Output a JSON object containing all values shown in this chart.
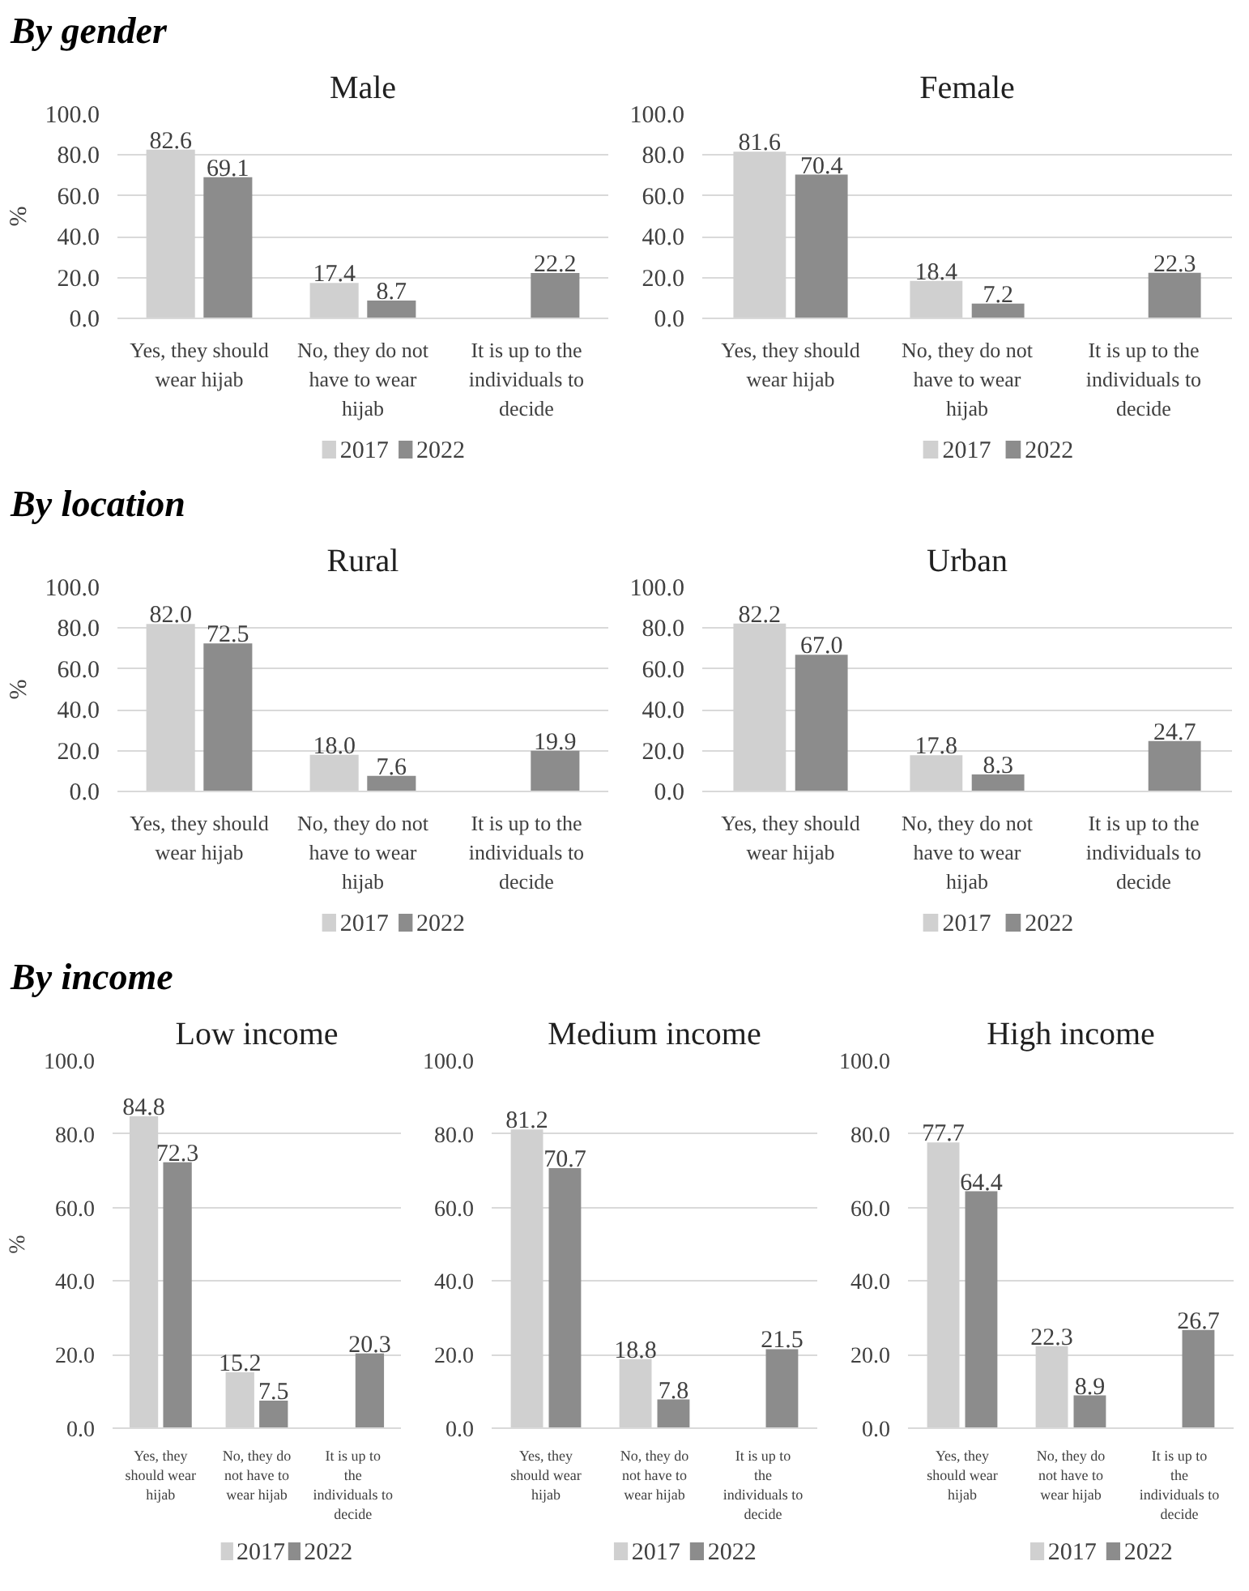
{
  "chart_data": [
    {
      "type": "other",
      "title": "By gender"
    },
    {
      "type": "bar",
      "title": "Male",
      "ylabel": "%",
      "categories": [
        "Yes, they should wear hijab",
        "No, they do not have to wear hijab",
        "It is up to the individuals to decide"
      ],
      "series": [
        {
          "name": "2017",
          "color": "#d0d0d0",
          "values": [
            82.6,
            17.4,
            null
          ],
          "value_labels": [
            "82.6",
            "17.4",
            null
          ]
        },
        {
          "name": "2022",
          "color": "#8c8c8c",
          "values": [
            69.1,
            8.7,
            22.2
          ],
          "value_labels": [
            "69.1",
            "8.7",
            "22.2"
          ]
        }
      ],
      "ylim": [
        0,
        100
      ],
      "yticks": [
        {
          "value": 0,
          "label": "0.0"
        },
        {
          "value": 20,
          "label": "20.0"
        },
        {
          "value": 40,
          "label": "40.0"
        },
        {
          "value": 60,
          "label": "60.0"
        },
        {
          "value": 80,
          "label": "80.0"
        },
        {
          "value": 100,
          "label": "100.0"
        }
      ],
      "grid": "y",
      "legend": "bottom"
    },
    {
      "type": "bar",
      "title": "Female",
      "categories": [
        "Yes, they should wear hijab",
        "No, they do not have to wear hijab",
        "It is up to the individuals to decide"
      ],
      "series": [
        {
          "name": "2017",
          "color": "#d0d0d0",
          "values": [
            81.6,
            18.4,
            null
          ],
          "value_labels": [
            "81.6",
            "18.4",
            null
          ]
        },
        {
          "name": "2022",
          "color": "#8c8c8c",
          "values": [
            70.4,
            7.2,
            22.3
          ],
          "value_labels": [
            "70.4",
            "7.2",
            "22.3"
          ]
        }
      ],
      "ylim": [
        0,
        100
      ],
      "yticks": [
        {
          "value": 0,
          "label": "0.0"
        },
        {
          "value": 20,
          "label": "20.0"
        },
        {
          "value": 40,
          "label": "40.0"
        },
        {
          "value": 60,
          "label": "60.0"
        },
        {
          "value": 80,
          "label": "80.0"
        },
        {
          "value": 100,
          "label": "100.0"
        }
      ],
      "grid": "y",
      "legend": "bottom"
    },
    {
      "type": "other",
      "title": "By location"
    },
    {
      "type": "bar",
      "title": "Rural",
      "ylabel": "%",
      "categories": [
        "Yes, they should wear hijab",
        "No, they do not have to wear hijab",
        "It is up to the individuals to decide"
      ],
      "series": [
        {
          "name": "2017",
          "color": "#d0d0d0",
          "values": [
            82.0,
            18.0,
            null
          ],
          "value_labels": [
            "82.0",
            "18.0",
            null
          ]
        },
        {
          "name": "2022",
          "color": "#8c8c8c",
          "values": [
            72.5,
            7.6,
            19.9
          ],
          "value_labels": [
            "72.5",
            "7.6",
            "19.9"
          ]
        }
      ],
      "ylim": [
        0,
        100
      ],
      "yticks": [
        {
          "value": 0,
          "label": "0.0"
        },
        {
          "value": 20,
          "label": "20.0"
        },
        {
          "value": 40,
          "label": "40.0"
        },
        {
          "value": 60,
          "label": "60.0"
        },
        {
          "value": 80,
          "label": "80.0"
        },
        {
          "value": 100,
          "label": "100.0"
        }
      ],
      "grid": "y",
      "legend": "bottom"
    },
    {
      "type": "bar",
      "title": "Urban",
      "categories": [
        "Yes, they should wear hijab",
        "No, they do not have to wear hijab",
        "It is up to the individuals to decide"
      ],
      "series": [
        {
          "name": "2017",
          "color": "#d0d0d0",
          "values": [
            82.2,
            17.8,
            null
          ],
          "value_labels": [
            "82.2",
            "17.8",
            null
          ]
        },
        {
          "name": "2022",
          "color": "#8c8c8c",
          "values": [
            67.0,
            8.3,
            24.7
          ],
          "value_labels": [
            "67.0",
            "8.3",
            "24.7"
          ]
        }
      ],
      "ylim": [
        0,
        100
      ],
      "yticks": [
        {
          "value": 0,
          "label": "0.0"
        },
        {
          "value": 20,
          "label": "20.0"
        },
        {
          "value": 40,
          "label": "40.0"
        },
        {
          "value": 60,
          "label": "60.0"
        },
        {
          "value": 80,
          "label": "80.0"
        },
        {
          "value": 100,
          "label": "100.0"
        }
      ],
      "grid": "y",
      "legend": "bottom"
    },
    {
      "type": "other",
      "title": "By income"
    },
    {
      "type": "bar",
      "title": "Low income",
      "ylabel": "%",
      "categories": [
        "Yes, they should wear hijab",
        "No, they do not have to wear hijab",
        "It is up to the individuals to decide"
      ],
      "series": [
        {
          "name": "2017",
          "color": "#d0d0d0",
          "values": [
            84.8,
            15.2,
            null
          ],
          "value_labels": [
            "84.8",
            "15.2",
            null
          ]
        },
        {
          "name": "2022",
          "color": "#8c8c8c",
          "values": [
            72.3,
            7.5,
            20.3
          ],
          "value_labels": [
            "72.3",
            "7.5",
            "20.3"
          ]
        }
      ],
      "ylim": [
        0,
        100
      ],
      "yticks": [
        {
          "value": 0,
          "label": "0.0"
        },
        {
          "value": 20,
          "label": "20.0"
        },
        {
          "value": 40,
          "label": "40.0"
        },
        {
          "value": 60,
          "label": "60.0"
        },
        {
          "value": 80,
          "label": "80.0"
        },
        {
          "value": 100,
          "label": "100.0"
        }
      ],
      "grid": "y",
      "legend": "bottom"
    },
    {
      "type": "bar",
      "title": "Medium income",
      "categories": [
        "Yes, they should wear hijab",
        "No, they do not have to wear hijab",
        "It is up to the individuals to decide"
      ],
      "series": [
        {
          "name": "2017",
          "color": "#d0d0d0",
          "values": [
            81.2,
            18.8,
            null
          ],
          "value_labels": [
            "81.2",
            "18.8",
            null
          ]
        },
        {
          "name": "2022",
          "color": "#8c8c8c",
          "values": [
            70.7,
            7.8,
            21.5
          ],
          "value_labels": [
            "70.7",
            "7.8",
            "21.5"
          ]
        }
      ],
      "ylim": [
        0,
        100
      ],
      "yticks": [
        {
          "value": 0,
          "label": "0.0"
        },
        {
          "value": 20,
          "label": "20.0"
        },
        {
          "value": 40,
          "label": "40.0"
        },
        {
          "value": 60,
          "label": "60.0"
        },
        {
          "value": 80,
          "label": "80.0"
        },
        {
          "value": 100,
          "label": "100.0"
        }
      ],
      "grid": "y",
      "legend": "bottom"
    },
    {
      "type": "bar",
      "title": "High income",
      "categories": [
        "Yes, they should wear hijab",
        "No, they do not have to wear hijab",
        "It is up to the individuals to decide"
      ],
      "series": [
        {
          "name": "2017",
          "color": "#d0d0d0",
          "values": [
            77.7,
            22.3,
            null
          ],
          "value_labels": [
            "77.7",
            "22.3",
            null
          ]
        },
        {
          "name": "2022",
          "color": "#8c8c8c",
          "values": [
            64.4,
            8.9,
            26.7
          ],
          "value_labels": [
            "64.4",
            "8.9",
            "26.7"
          ]
        }
      ],
      "ylim": [
        0,
        100
      ],
      "yticks": [
        {
          "value": 0,
          "label": "0.0"
        },
        {
          "value": 20,
          "label": "20.0"
        },
        {
          "value": 40,
          "label": "40.0"
        },
        {
          "value": 60,
          "label": "60.0"
        },
        {
          "value": 80,
          "label": "80.0"
        },
        {
          "value": 100,
          "label": "100.0"
        }
      ],
      "grid": "y",
      "legend": "bottom"
    }
  ]
}
